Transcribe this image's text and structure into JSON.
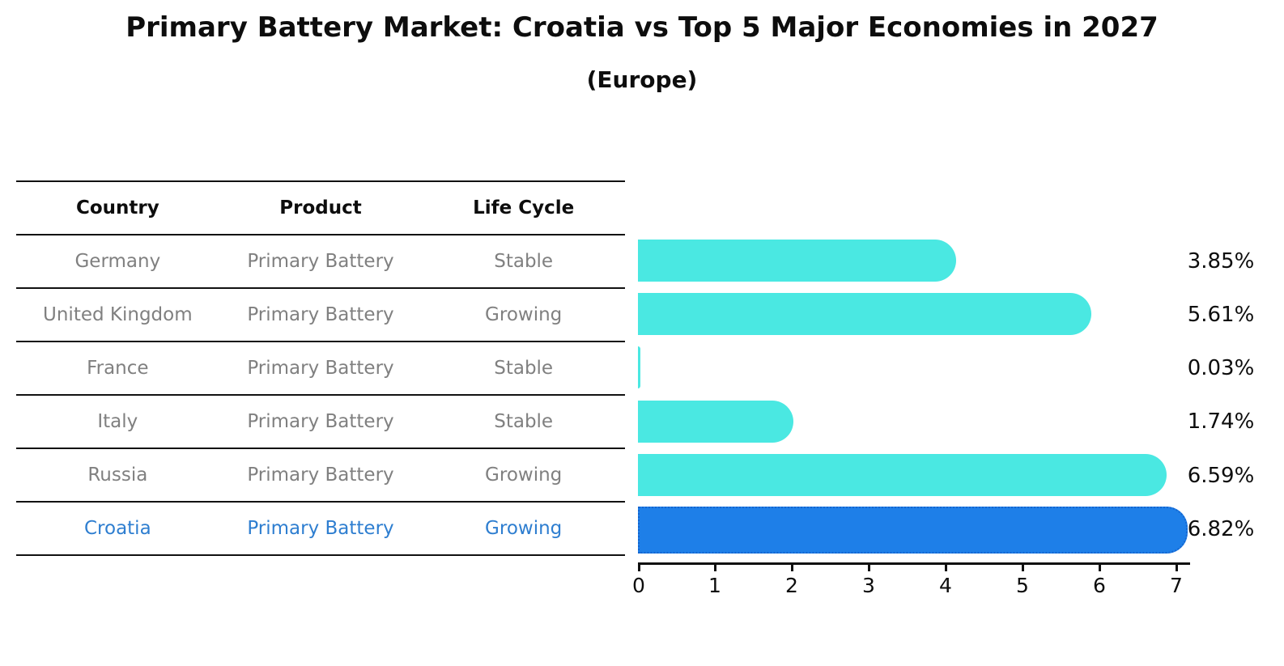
{
  "title": "Primary Battery Market: Croatia vs Top 5 Major Economies in 2027",
  "subtitle": "(Europe)",
  "table": {
    "headers": [
      "Country",
      "Product",
      "Life Cycle"
    ],
    "rows": [
      {
        "country": "Germany",
        "product": "Primary Battery",
        "life_cycle": "Stable"
      },
      {
        "country": "United Kingdom",
        "product": "Primary Battery",
        "life_cycle": "Growing"
      },
      {
        "country": "France",
        "product": "Primary Battery",
        "life_cycle": "Stable"
      },
      {
        "country": "Italy",
        "product": "Primary Battery",
        "life_cycle": "Stable"
      },
      {
        "country": "Russia",
        "product": "Primary Battery",
        "life_cycle": "Growing"
      },
      {
        "country": "Croatia",
        "product": "Primary Battery",
        "life_cycle": "Growing"
      }
    ],
    "highlight_row": "Croatia"
  },
  "chart_data": {
    "type": "bar",
    "orientation": "horizontal",
    "title": "Primary Battery Market: Croatia vs Top 5 Major Economies in 2027 (Europe)",
    "categories": [
      "Germany",
      "United Kingdom",
      "France",
      "Italy",
      "Russia",
      "Croatia"
    ],
    "values": [
      3.85,
      5.61,
      0.03,
      1.74,
      6.59,
      6.82
    ],
    "value_labels": [
      "3.85%",
      "5.61%",
      "0.03%",
      "1.74%",
      "6.59%",
      "6.82%"
    ],
    "x_ticks": [
      "0",
      "1",
      "2",
      "3",
      "4",
      "5",
      "6",
      "7"
    ],
    "xlim": [
      0,
      7.18
    ],
    "grid": false,
    "legend": false,
    "bar_color": "#4AE8E2",
    "highlight_color": "#1E7FE8",
    "highlight_index": 5
  },
  "colors": {
    "table_text": "#808080",
    "header_text": "#0d0d0d",
    "highlight_text": "#2e7ed0",
    "axis_line": "#111111",
    "bar_cyan": "#4AE8E2",
    "bar_blue": "#1E7FE8"
  }
}
